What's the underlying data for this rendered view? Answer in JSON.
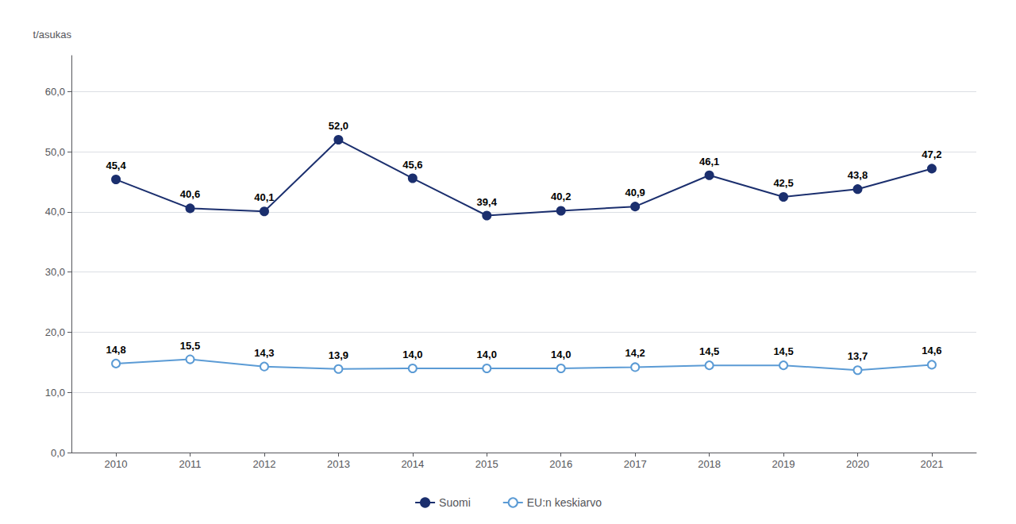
{
  "chart_data": {
    "type": "line",
    "ylabel": "t/asukas",
    "x": [
      2010,
      2011,
      2012,
      2013,
      2014,
      2015,
      2016,
      2017,
      2018,
      2019,
      2020,
      2021
    ],
    "xlim": [
      2009.4,
      2021.6
    ],
    "xticks": [
      2010,
      2011,
      2012,
      2013,
      2014,
      2015,
      2016,
      2017,
      2018,
      2019,
      2020,
      2021
    ],
    "ylim": [
      0,
      66
    ],
    "yticks": [
      {
        "value": 0.0,
        "label": "0,0"
      },
      {
        "value": 10.0,
        "label": "10,0"
      },
      {
        "value": 20.0,
        "label": "20,0"
      },
      {
        "value": 30.0,
        "label": "30,0"
      },
      {
        "value": 40.0,
        "label": "40,0"
      },
      {
        "value": 50.0,
        "label": "50,0"
      },
      {
        "value": 60.0,
        "label": "60,0"
      }
    ],
    "grid": true,
    "legend": "bottom",
    "data_labels": true,
    "series": [
      {
        "name": "Suomi",
        "color": "#1b2f6e",
        "marker": "circle",
        "values": [
          45.4,
          40.6,
          40.1,
          52.0,
          45.6,
          39.4,
          40.2,
          40.9,
          46.1,
          42.5,
          43.8,
          47.2
        ],
        "value_labels": [
          "45,4",
          "40,6",
          "40,1",
          "52,0",
          "45,6",
          "39,4",
          "40,2",
          "40,9",
          "46,1",
          "42,5",
          "43,8",
          "47,2"
        ]
      },
      {
        "name": "EU:n keskiarvo",
        "color": "#5b9bd5",
        "marker": "open_circle",
        "values": [
          14.8,
          15.5,
          14.3,
          13.9,
          14.0,
          14.0,
          14.0,
          14.2,
          14.5,
          14.5,
          13.7,
          14.6
        ],
        "value_labels": [
          "14,8",
          "15,5",
          "14,3",
          "13,9",
          "14,0",
          "14,0",
          "14,0",
          "14,2",
          "14,5",
          "14,5",
          "13,7",
          "14,6"
        ]
      }
    ]
  }
}
